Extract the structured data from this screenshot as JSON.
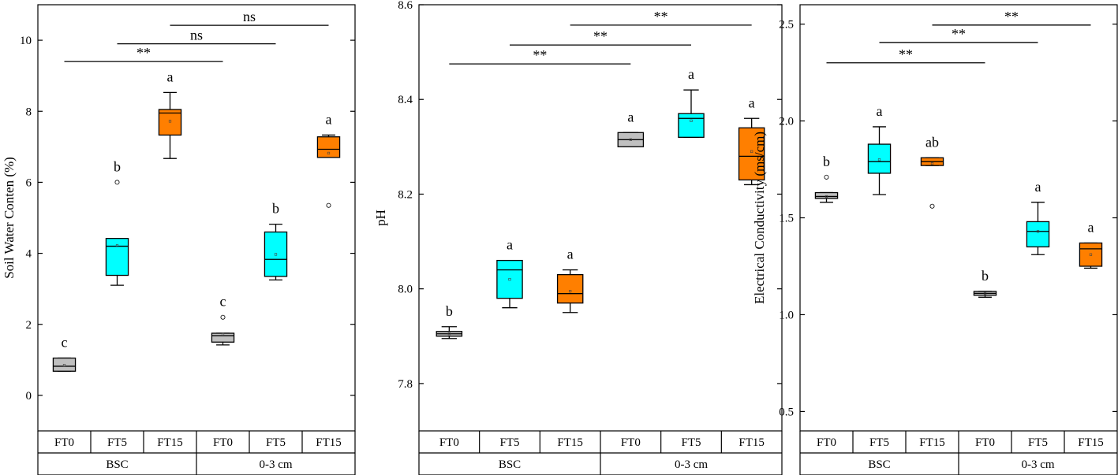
{
  "chart_data": [
    {
      "type": "box",
      "ylabel": "Soil Water Conten (%)",
      "ylim": [
        -1.0,
        11.0
      ],
      "yticks": [
        0,
        2,
        4,
        6,
        8,
        10
      ],
      "groups": [
        "BSC",
        "0-3 cm"
      ],
      "categories": [
        "FT0",
        "FT5",
        "FT15",
        "FT0",
        "FT5",
        "FT15"
      ],
      "colors": [
        "#c0c0c0",
        "#00ffff",
        "#ff7f00",
        "#c0c0c0",
        "#00ffff",
        "#ff7f00"
      ],
      "boxes": [
        {
          "min": 0.68,
          "q1": 0.68,
          "median": 0.82,
          "q3": 1.05,
          "max": 1.05,
          "mean": 0.85,
          "outliers": [],
          "letter": "c"
        },
        {
          "min": 3.1,
          "q1": 3.38,
          "median": 4.2,
          "q3": 4.42,
          "max": 4.42,
          "mean": 4.22,
          "outliers": [
            6.0
          ],
          "letter": "b"
        },
        {
          "min": 6.67,
          "q1": 7.33,
          "median": 7.95,
          "q3": 8.05,
          "max": 8.53,
          "mean": 7.72,
          "outliers": [],
          "letter": "a"
        },
        {
          "min": 1.42,
          "q1": 1.5,
          "median": 1.68,
          "q3": 1.75,
          "max": 1.75,
          "mean": 1.72,
          "outliers": [
            2.2
          ],
          "letter": "c"
        },
        {
          "min": 3.25,
          "q1": 3.35,
          "median": 3.83,
          "q3": 4.6,
          "max": 4.82,
          "mean": 3.97,
          "outliers": [],
          "letter": "b"
        },
        {
          "min": 6.7,
          "q1": 6.7,
          "median": 6.93,
          "q3": 7.28,
          "max": 7.33,
          "mean": 6.82,
          "outliers": [
            5.35
          ],
          "letter": "a"
        }
      ],
      "significance": [
        {
          "from": 0,
          "to": 3,
          "value": 9.4,
          "label": "**"
        },
        {
          "from": 1,
          "to": 4,
          "value": 9.9,
          "label": "ns"
        },
        {
          "from": 2,
          "to": 5,
          "value": 10.42,
          "label": "ns"
        }
      ]
    },
    {
      "type": "box",
      "ylabel": "pH",
      "ylim": [
        7.7,
        8.6
      ],
      "yticks": [
        7.8,
        8.0,
        8.2,
        8.4,
        8.6
      ],
      "groups": [
        "BSC",
        "0-3 cm"
      ],
      "categories": [
        "FT0",
        "FT5",
        "FT15",
        "FT0",
        "FT5",
        "FT15"
      ],
      "colors": [
        "#c0c0c0",
        "#00ffff",
        "#ff7f00",
        "#c0c0c0",
        "#00ffff",
        "#ff7f00"
      ],
      "boxes": [
        {
          "min": 7.895,
          "q1": 7.9,
          "median": 7.905,
          "q3": 7.91,
          "max": 7.92,
          "mean": 7.905,
          "outliers": [],
          "letter": "b"
        },
        {
          "min": 7.96,
          "q1": 7.98,
          "median": 8.04,
          "q3": 8.06,
          "max": 8.06,
          "mean": 8.02,
          "outliers": [],
          "letter": "a"
        },
        {
          "min": 7.95,
          "q1": 7.97,
          "median": 7.99,
          "q3": 8.03,
          "max": 8.04,
          "mean": 7.995,
          "outliers": [],
          "letter": "a"
        },
        {
          "min": 8.3,
          "q1": 8.3,
          "median": 8.315,
          "q3": 8.33,
          "max": 8.33,
          "mean": 8.315,
          "outliers": [],
          "letter": "a"
        },
        {
          "min": 8.32,
          "q1": 8.32,
          "median": 8.36,
          "q3": 8.37,
          "max": 8.42,
          "mean": 8.355,
          "outliers": [],
          "letter": "a"
        },
        {
          "min": 8.22,
          "q1": 8.23,
          "median": 8.28,
          "q3": 8.34,
          "max": 8.36,
          "mean": 8.29,
          "outliers": [],
          "letter": "a"
        }
      ],
      "significance": [
        {
          "from": 0,
          "to": 3,
          "value": 8.475,
          "label": "**"
        },
        {
          "from": 1,
          "to": 4,
          "value": 8.515,
          "label": "**"
        },
        {
          "from": 2,
          "to": 5,
          "value": 8.557,
          "label": "**"
        }
      ]
    },
    {
      "type": "box",
      "ylabel": "Electrical Conductivity (ms/cm)",
      "ylim": [
        0.4,
        2.6
      ],
      "yticks": [
        0.5,
        1.0,
        1.5,
        2.0,
        2.5
      ],
      "groups": [
        "BSC",
        "0-3 cm"
      ],
      "categories": [
        "FT0",
        "FT5",
        "FT15",
        "FT0",
        "FT5",
        "FT15"
      ],
      "colors": [
        "#c0c0c0",
        "#00ffff",
        "#ff7f00",
        "#c0c0c0",
        "#00ffff",
        "#ff7f00"
      ],
      "boxes": [
        {
          "min": 1.58,
          "q1": 1.6,
          "median": 1.61,
          "q3": 1.63,
          "max": 1.63,
          "mean": 1.61,
          "outliers": [
            1.71
          ],
          "letter": "b"
        },
        {
          "min": 1.62,
          "q1": 1.73,
          "median": 1.79,
          "q3": 1.88,
          "max": 1.97,
          "mean": 1.8,
          "outliers": [],
          "letter": "a"
        },
        {
          "min": 1.77,
          "q1": 1.77,
          "median": 1.79,
          "q3": 1.81,
          "max": 1.81,
          "mean": 1.78,
          "outliers": [
            1.56
          ],
          "letter": "ab"
        },
        {
          "min": 1.09,
          "q1": 1.1,
          "median": 1.11,
          "q3": 1.12,
          "max": 1.12,
          "mean": 1.11,
          "outliers": [],
          "letter": "b"
        },
        {
          "min": 1.31,
          "q1": 1.35,
          "median": 1.43,
          "q3": 1.48,
          "max": 1.58,
          "mean": 1.43,
          "outliers": [],
          "letter": "a"
        },
        {
          "min": 1.24,
          "q1": 1.25,
          "median": 1.34,
          "q3": 1.37,
          "max": 1.37,
          "mean": 1.31,
          "outliers": [],
          "letter": "a"
        }
      ],
      "significance": [
        {
          "from": 0,
          "to": 3,
          "value": 2.3,
          "label": "**"
        },
        {
          "from": 1,
          "to": 4,
          "value": 2.405,
          "label": "**"
        },
        {
          "from": 2,
          "to": 5,
          "value": 2.495,
          "label": "**"
        }
      ]
    }
  ]
}
